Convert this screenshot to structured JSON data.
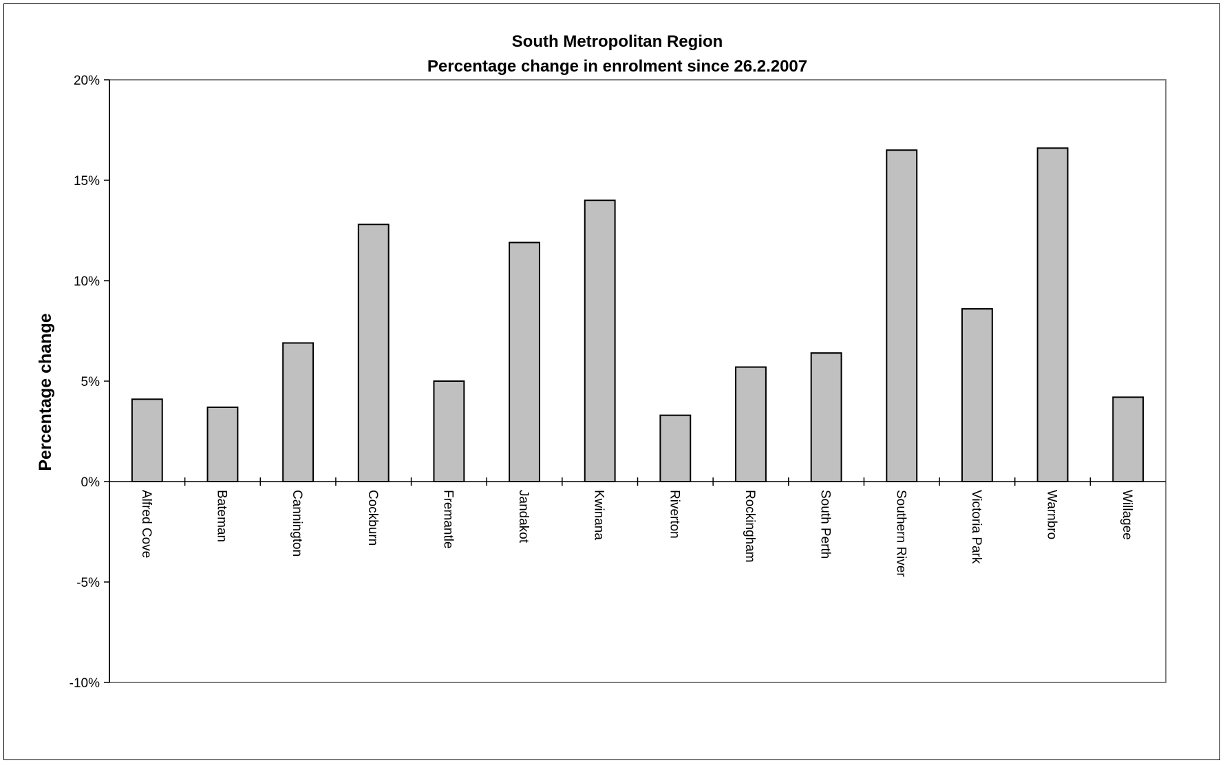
{
  "chart_data": {
    "type": "bar",
    "title": "South Metropolitan Region",
    "subtitle": "Percentage change in enrolment since 26.2.2007",
    "xlabel": "",
    "ylabel": "Percentage change",
    "ylim": [
      -10,
      20
    ],
    "yticks": [
      20,
      15,
      10,
      5,
      0,
      -5,
      -10
    ],
    "ytick_labels": [
      "20%",
      "15%",
      "10%",
      "5%",
      "0%",
      "-5%",
      "-10%"
    ],
    "grid": false,
    "legend": "none",
    "bar_color": "#c0c0c0",
    "categories": [
      "Alfred Cove",
      "Bateman",
      "Cannington",
      "Cockburn",
      "Fremantle",
      "Jandakot",
      "Kwinana",
      "Riverton",
      "Rockingham",
      "South Perth",
      "Southern River",
      "Victoria Park",
      "Warnbro",
      "Willagee"
    ],
    "values": [
      4.1,
      3.7,
      6.9,
      12.8,
      5.0,
      11.9,
      14.0,
      3.3,
      5.7,
      6.4,
      16.5,
      8.6,
      16.6,
      4.2
    ]
  }
}
